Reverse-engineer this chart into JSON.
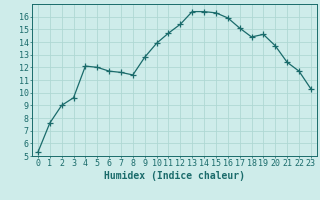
{
  "x": [
    0,
    1,
    2,
    3,
    4,
    5,
    6,
    7,
    8,
    9,
    10,
    11,
    12,
    13,
    14,
    15,
    16,
    17,
    18,
    19,
    20,
    21,
    22,
    23
  ],
  "y": [
    5.3,
    7.6,
    9.0,
    9.6,
    12.1,
    12.0,
    11.7,
    11.6,
    11.4,
    12.8,
    13.9,
    14.7,
    15.4,
    16.4,
    16.4,
    16.3,
    15.9,
    15.1,
    14.4,
    14.6,
    13.7,
    12.4,
    11.7,
    10.3
  ],
  "line_color": "#1a6b6b",
  "marker": "+",
  "marker_size": 4,
  "marker_linewidth": 0.9,
  "bg_color": "#ceecea",
  "grid_color": "#afd8d4",
  "xlabel": "Humidex (Indice chaleur)",
  "xlim": [
    -0.5,
    23.5
  ],
  "ylim": [
    5,
    17.0
  ],
  "yticks": [
    5,
    6,
    7,
    8,
    9,
    10,
    11,
    12,
    13,
    14,
    15,
    16
  ],
  "xticks": [
    0,
    1,
    2,
    3,
    4,
    5,
    6,
    7,
    8,
    9,
    10,
    11,
    12,
    13,
    14,
    15,
    16,
    17,
    18,
    19,
    20,
    21,
    22,
    23
  ],
  "font_color": "#1a6b6b",
  "font_size": 6.0,
  "xlabel_fontsize": 7.0,
  "line_width": 0.9
}
